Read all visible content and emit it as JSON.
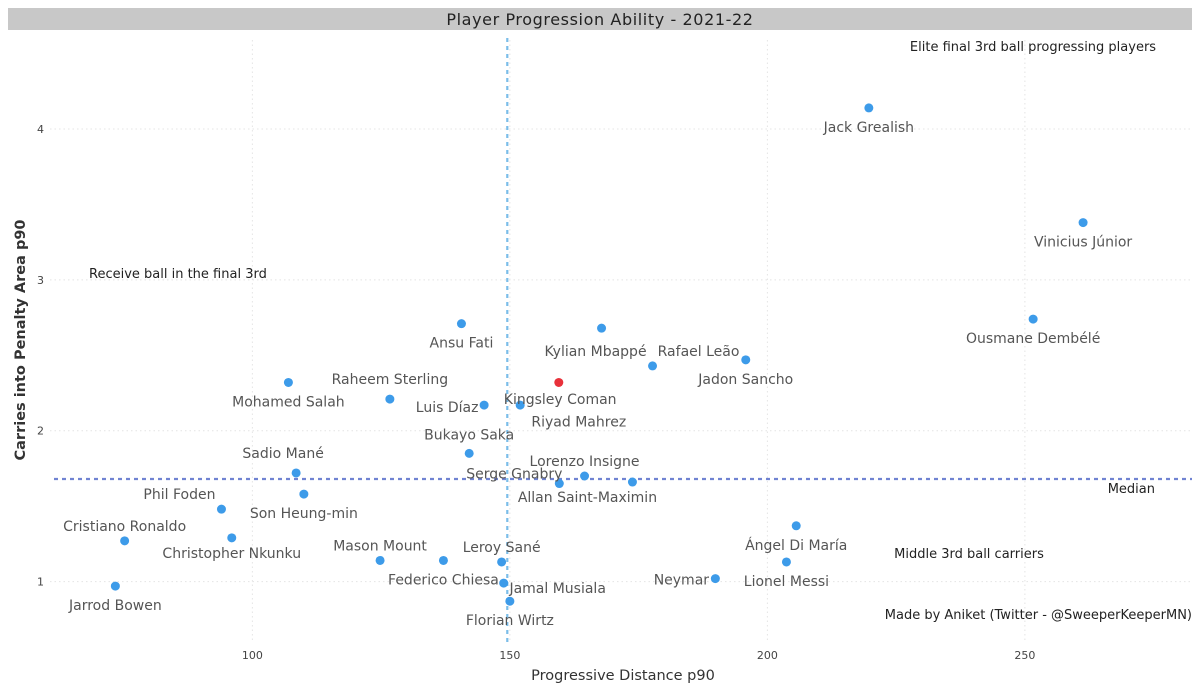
{
  "chart_data": {
    "type": "scatter",
    "title": "Player Progression Ability - 2021-22",
    "xlabel": "Progressive Distance p90",
    "ylabel": "Carries into Penalty Area p90",
    "xlim": [
      51,
      284
    ],
    "ylim": [
      0.52,
      4.65
    ],
    "x_ticks": [
      100,
      150,
      200,
      250
    ],
    "y_ticks": [
      1,
      2,
      3,
      4
    ],
    "grid": "dotted",
    "point_color": "#3d9be9",
    "highlight_color": "#e8313a",
    "reference_lines": {
      "x_value": 149.5,
      "y_value": 1.68,
      "x_color": "#7bbde9",
      "y_color": "#7083d2",
      "median_label": "Median"
    },
    "points": [
      {
        "name": "Jack Grealish",
        "x": 219.7,
        "y": 4.14
      },
      {
        "name": "Vinicius Júnior",
        "x": 261.3,
        "y": 3.38
      },
      {
        "name": "Ousmane Dembélé",
        "x": 251.6,
        "y": 2.74
      },
      {
        "name": "Ansu Fati",
        "x": 140.6,
        "y": 2.71
      },
      {
        "name": "Kylian Mbappé",
        "x": 167.8,
        "y": 2.68
      },
      {
        "name": "Rafael Leão",
        "x": 177.7,
        "y": 2.43
      },
      {
        "name": "Jadon Sancho",
        "x": 195.8,
        "y": 2.47
      },
      {
        "name": "Mohamed Salah",
        "x": 107.0,
        "y": 2.32
      },
      {
        "name": "Raheem Sterling",
        "x": 126.7,
        "y": 2.21
      },
      {
        "name": "Luis Díaz",
        "x": 145.0,
        "y": 2.17
      },
      {
        "name": "Kingsley Coman",
        "x": 152.0,
        "y": 2.17
      },
      {
        "name": "Riyad Mahrez",
        "x": 159.5,
        "y": 2.32,
        "highlight": true
      },
      {
        "name": "Bukayo Saka",
        "x": 142.1,
        "y": 1.85
      },
      {
        "name": "Sadio Mané",
        "x": 108.5,
        "y": 1.72
      },
      {
        "name": "Serge Gnabry",
        "x": 159.6,
        "y": 1.65
      },
      {
        "name": "Allan Saint-Maximin",
        "x": 173.8,
        "y": 1.66
      },
      {
        "name": "Lorenzo Insigne",
        "x": 164.5,
        "y": 1.7
      },
      {
        "name": "Phil Foden",
        "x": 94.0,
        "y": 1.48
      },
      {
        "name": "Son Heung-min",
        "x": 110.0,
        "y": 1.58
      },
      {
        "name": "Cristiano Ronaldo",
        "x": 75.2,
        "y": 1.27
      },
      {
        "name": "Christopher Nkunku",
        "x": 96.0,
        "y": 1.29
      },
      {
        "name": "Mason Mount",
        "x": 124.8,
        "y": 1.14
      },
      {
        "name": "Federico Chiesa",
        "x": 137.1,
        "y": 1.14
      },
      {
        "name": "Leroy Sané",
        "x": 148.4,
        "y": 1.13
      },
      {
        "name": "Jamal Musiala",
        "x": 148.8,
        "y": 0.99
      },
      {
        "name": "Florian Wirtz",
        "x": 150.0,
        "y": 0.87
      },
      {
        "name": "Jarrod Bowen",
        "x": 73.4,
        "y": 0.97
      },
      {
        "name": "Neymar",
        "x": 189.9,
        "y": 1.02
      },
      {
        "name": "Ángel Di María",
        "x": 205.6,
        "y": 1.37
      },
      {
        "name": "Lionel Messi",
        "x": 203.7,
        "y": 1.13
      }
    ],
    "annotations": {
      "elite": "Elite final 3rd ball progressing players",
      "receive": "Receive ball in the final 3rd",
      "middle": "Middle 3rd ball carriers",
      "credit": "Made by Aniket (Twitter - @SweeperKeeperMN)"
    }
  }
}
